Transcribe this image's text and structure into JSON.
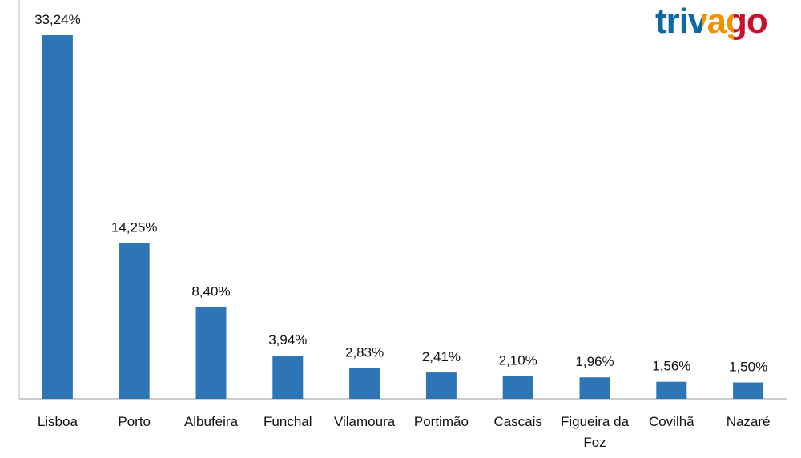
{
  "chart_data": {
    "type": "bar",
    "logo": "trivago",
    "categories": [
      "Lisboa",
      "Porto",
      "Albufeira",
      "Funchal",
      "Vilamoura",
      "Portimão",
      "Cascais",
      "Figueira da Foz",
      "Covilhã",
      "Nazaré"
    ],
    "values": [
      33.24,
      14.25,
      8.4,
      3.94,
      2.83,
      2.41,
      2.1,
      1.96,
      1.56,
      1.5
    ],
    "value_labels": [
      "33,24%",
      "14,25%",
      "8,40%",
      "3,94%",
      "2,83%",
      "2,41%",
      "2,10%",
      "1,96%",
      "1,56%",
      "1,50%"
    ],
    "color": "#2e75b6"
  }
}
